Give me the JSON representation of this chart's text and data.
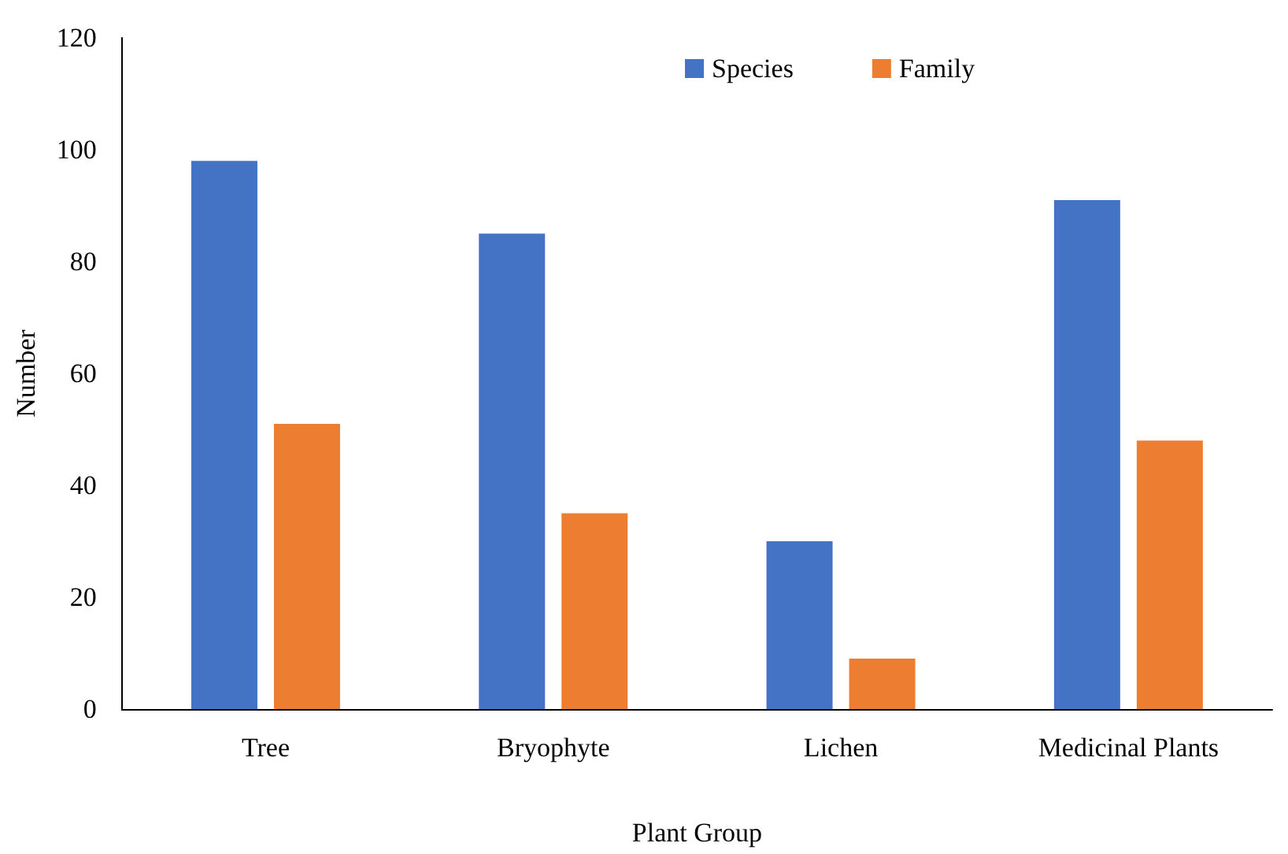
{
  "chart_data": {
    "type": "bar",
    "xlabel": "Plant Group",
    "ylabel": "Number",
    "categories": [
      "Tree",
      "Bryophyte",
      "Lichen",
      "Medicinal Plants"
    ],
    "series": [
      {
        "name": "Species",
        "color": "#4472c4",
        "values": [
          98,
          85,
          30,
          91
        ]
      },
      {
        "name": "Family",
        "color": "#ed7d31",
        "values": [
          51,
          35,
          9,
          48
        ]
      }
    ],
    "ylim": [
      0,
      120
    ],
    "yticks": [
      0,
      20,
      40,
      60,
      80,
      100,
      120
    ],
    "grid": false,
    "legend": "top right"
  }
}
